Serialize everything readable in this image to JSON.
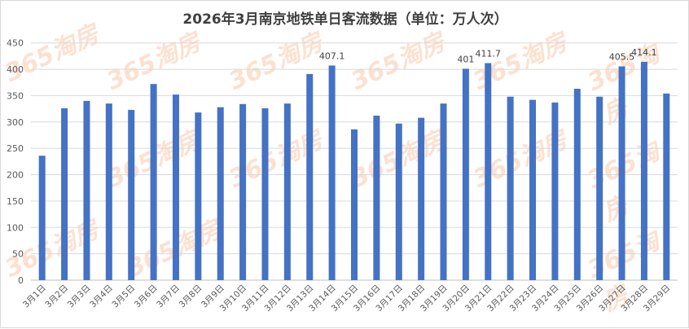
{
  "chart_data": {
    "type": "bar",
    "title": "2026年3月南京地铁单日客流数据（单位：万人次）",
    "xlabel": "",
    "ylabel": "",
    "ylim": [
      0,
      450
    ],
    "yticks": [
      0,
      50,
      100,
      150,
      200,
      250,
      300,
      350,
      400,
      450
    ],
    "grid": true,
    "categories": [
      "3月1日",
      "3月2日",
      "3月3日",
      "3月4日",
      "3月5日",
      "3月6日",
      "3月7日",
      "3月8日",
      "3月9日",
      "3月10日",
      "3月11日",
      "3月12日",
      "3月13日",
      "3月14日",
      "3月15日",
      "3月16日",
      "3月17日",
      "3月18日",
      "3月19日",
      "3月20日",
      "3月21日",
      "3月22日",
      "3月23日",
      "3月24日",
      "3月25日",
      "3月26日",
      "3月27日",
      "3月28日",
      "3月29日"
    ],
    "values": [
      236,
      326,
      340,
      335,
      323,
      372,
      352,
      318,
      328,
      334,
      326,
      335,
      391,
      407.1,
      286,
      312,
      297,
      308,
      335,
      401,
      411.7,
      348,
      342,
      337,
      363,
      348,
      405.5,
      414.1,
      354
    ],
    "data_labels": {
      "13": "407.1",
      "19": "401",
      "20": "411.7",
      "26": "405.5",
      "27": "414.1"
    },
    "bar_color": "#4472C4"
  },
  "watermark": "365淘房"
}
